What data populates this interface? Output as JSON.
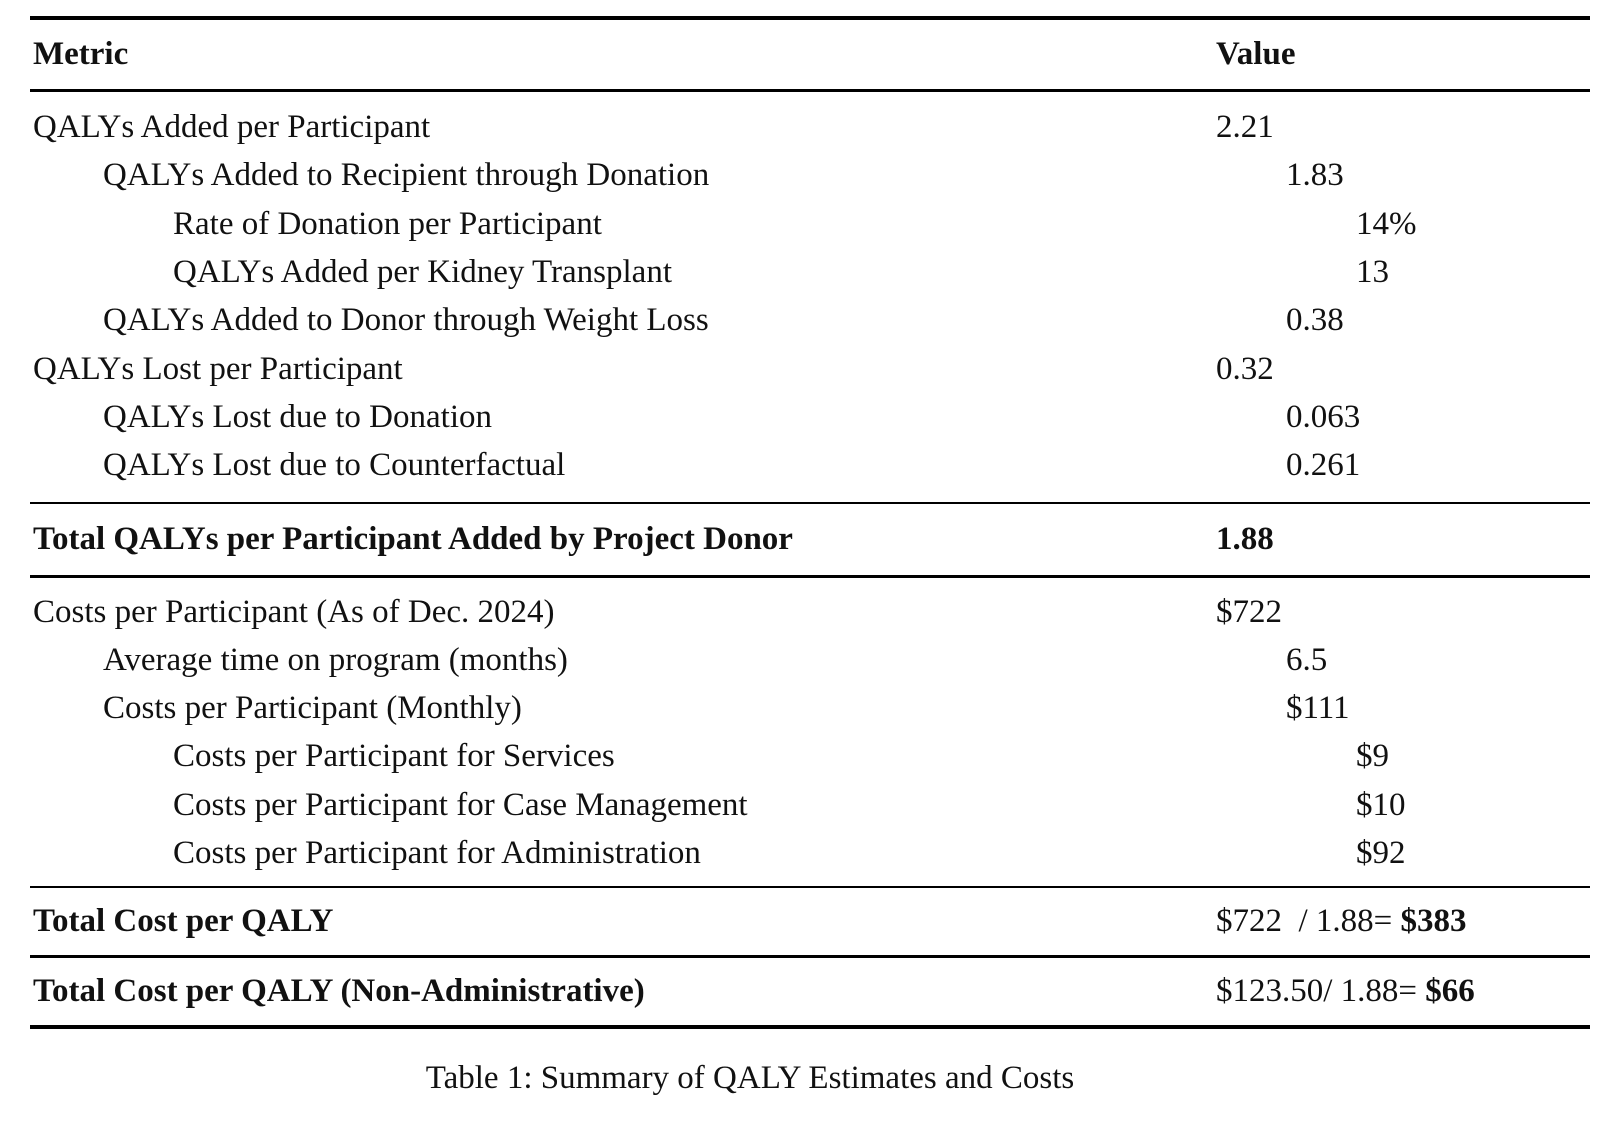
{
  "table": {
    "header": {
      "metric": "Metric",
      "value": "Value"
    },
    "qaly_section": {
      "rows": [
        {
          "label": "QALYs Added per Participant",
          "value": "2.21",
          "level": 0
        },
        {
          "label": "QALYs Added to Recipient through Donation",
          "value": "1.83",
          "level": 1
        },
        {
          "label": "Rate of Donation per Participant",
          "value": "14%",
          "level": 2
        },
        {
          "label": "QALYs Added per Kidney Transplant",
          "value": "13",
          "level": 2
        },
        {
          "label": "QALYs Added to Donor through Weight Loss",
          "value": "0.38",
          "level": 1
        },
        {
          "label": "QALYs Lost per Participant",
          "value": "0.32",
          "level": 0
        },
        {
          "label": "QALYs Lost due to Donation",
          "value": "0.063",
          "level": 1
        },
        {
          "label": "QALYs Lost due to Counterfactual",
          "value": "0.261",
          "level": 1
        }
      ]
    },
    "qaly_total": {
      "label": "Total QALYs per Participant Added by Project Donor",
      "value": "1.88"
    },
    "cost_section": {
      "rows": [
        {
          "label": "Costs per Participant (As of Dec. 2024)",
          "value": "$722",
          "level": 0
        },
        {
          "label": "Average time on program (months)",
          "value": "6.5",
          "level": 1
        },
        {
          "label": "Costs per Participant (Monthly)",
          "value": "$111",
          "level": 1
        },
        {
          "label": "Costs per Participant for Services",
          "value": "$9",
          "level": 2
        },
        {
          "label": "Costs per Participant for Case Management",
          "value": "$10",
          "level": 2
        },
        {
          "label": "Costs per Participant for Administration",
          "value": "$92",
          "level": 2
        }
      ]
    },
    "cost_total": {
      "label": "Total Cost per QALY",
      "value_plain": "$722  / 1.88= ",
      "value_bold": "$383"
    },
    "cost_total_nonadmin": {
      "label": "Total Cost per QALY (Non-Administrative)",
      "value_plain": "$123.50/ 1.88= ",
      "value_bold": "$66"
    }
  },
  "caption": "Table 1: Summary of QALY Estimates and Costs"
}
